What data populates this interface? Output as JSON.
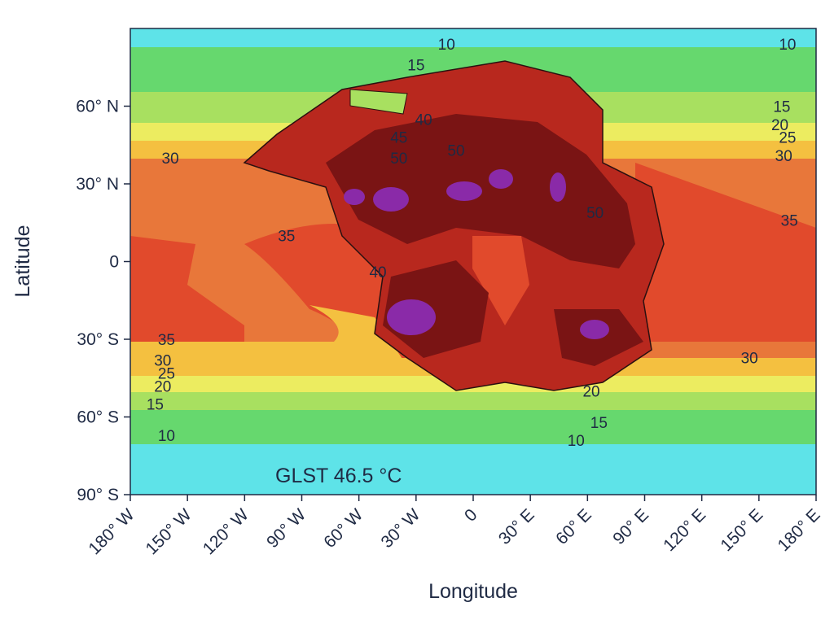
{
  "chart_data": {
    "type": "contour",
    "xlabel": "Longitude",
    "ylabel": "Latitude",
    "annotation": "GLST 46.5 °C",
    "xlim": [
      -180,
      180
    ],
    "ylim": [
      -90,
      90
    ],
    "xticks": [
      {
        "value": -180,
        "label": "180° W"
      },
      {
        "value": -150,
        "label": "150° W"
      },
      {
        "value": -120,
        "label": "120° W"
      },
      {
        "value": -90,
        "label": "90° W"
      },
      {
        "value": -60,
        "label": "60° W"
      },
      {
        "value": -30,
        "label": "30° W"
      },
      0,
      {
        "value": 30,
        "label": "30° E"
      },
      {
        "value": 60,
        "label": "60° E"
      },
      {
        "value": 90,
        "label": "90° E"
      },
      {
        "value": 120,
        "label": "120° E"
      },
      {
        "value": 150,
        "label": "150° E"
      },
      {
        "value": 180,
        "label": "180° E"
      }
    ],
    "yticks": [
      {
        "value": -90,
        "label": "90° S"
      },
      {
        "value": -60,
        "label": "60° S"
      },
      {
        "value": -30,
        "label": "30° S"
      },
      0,
      {
        "value": 30,
        "label": "30° N"
      },
      {
        "value": 60,
        "label": "60° N"
      }
    ],
    "contour_labels": [
      {
        "value": 10,
        "lon": -14,
        "lat": 84
      },
      {
        "value": 10,
        "lon": 165,
        "lat": 84
      },
      {
        "value": 15,
        "lon": -30,
        "lat": 76
      },
      {
        "value": 15,
        "lon": 162,
        "lat": 60
      },
      {
        "value": 20,
        "lon": 161,
        "lat": 53
      },
      {
        "value": 25,
        "lon": 165,
        "lat": 48
      },
      {
        "value": 30,
        "lon": 163,
        "lat": 41
      },
      {
        "value": 30,
        "lon": -159,
        "lat": 40
      },
      {
        "value": 40,
        "lon": -26,
        "lat": 55
      },
      {
        "value": 45,
        "lon": -39,
        "lat": 48
      },
      {
        "value": 50,
        "lon": -39,
        "lat": 40
      },
      {
        "value": 50,
        "lon": -9,
        "lat": 43
      },
      {
        "value": 50,
        "lon": 64,
        "lat": 19
      },
      {
        "value": 35,
        "lon": -98,
        "lat": 10
      },
      {
        "value": 35,
        "lon": 166,
        "lat": 16
      },
      {
        "value": 40,
        "lon": -50,
        "lat": -4
      },
      {
        "value": 35,
        "lon": -161,
        "lat": -30
      },
      {
        "value": 30,
        "lon": -163,
        "lat": -38
      },
      {
        "value": 25,
        "lon": -161,
        "lat": -43
      },
      {
        "value": 20,
        "lon": -163,
        "lat": -48
      },
      {
        "value": 15,
        "lon": -167,
        "lat": -55
      },
      {
        "value": 10,
        "lon": -161,
        "lat": -67
      },
      {
        "value": 30,
        "lon": 145,
        "lat": -37
      },
      {
        "value": 20,
        "lon": 62,
        "lat": -50
      },
      {
        "value": 15,
        "lon": 66,
        "lat": -62
      },
      {
        "value": 10,
        "lon": 54,
        "lat": -69
      }
    ]
  }
}
